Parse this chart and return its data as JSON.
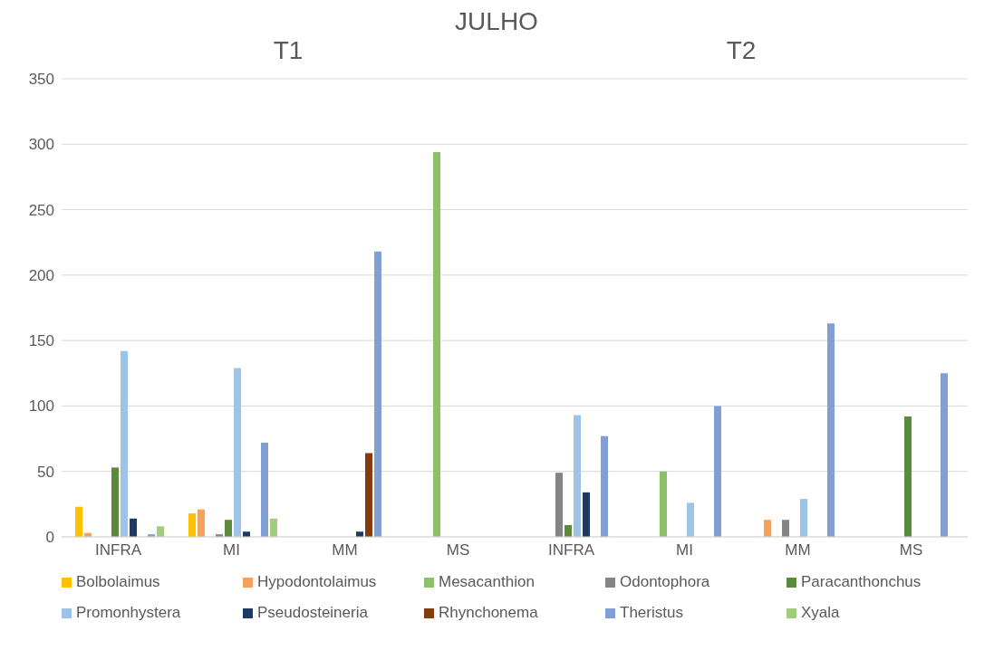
{
  "chart_data": {
    "type": "bar",
    "title": "JULHO",
    "annotations": [
      "T1",
      "T2"
    ],
    "categories": [
      "INFRA",
      "MI",
      "MM",
      "MS",
      "INFRA",
      "MI",
      "MM",
      "MS"
    ],
    "series": [
      {
        "name": "Bolbolaimus",
        "color": "#ffc000",
        "values": [
          23,
          18,
          null,
          null,
          null,
          null,
          null,
          null
        ]
      },
      {
        "name": "Hypodontolaimus",
        "color": "#f4a15d",
        "values": [
          3,
          21,
          null,
          null,
          null,
          null,
          13,
          null
        ]
      },
      {
        "name": "Mesacanthion",
        "color": "#8dc06a",
        "values": [
          null,
          null,
          null,
          294,
          null,
          50,
          null,
          null
        ]
      },
      {
        "name": "Odontophora",
        "color": "#858585",
        "values": [
          null,
          2,
          null,
          null,
          49,
          null,
          13,
          null
        ]
      },
      {
        "name": "Paracanthonchus",
        "color": "#5b8a3c",
        "values": [
          53,
          13,
          null,
          null,
          9,
          null,
          null,
          92
        ]
      },
      {
        "name": "Promonhystera",
        "color": "#9dc3e6",
        "values": [
          142,
          129,
          null,
          null,
          93,
          26,
          29,
          null
        ]
      },
      {
        "name": "Pseudosteineria",
        "color": "#203864",
        "values": [
          14,
          4,
          4,
          null,
          34,
          null,
          null,
          null
        ]
      },
      {
        "name": "Rhynchonema",
        "color": "#843c0c",
        "values": [
          null,
          null,
          64,
          null,
          null,
          null,
          null,
          null
        ]
      },
      {
        "name": "Theristus",
        "color": "#7f9fd5",
        "values": [
          2,
          72,
          218,
          null,
          77,
          100,
          163,
          125
        ]
      },
      {
        "name": "Xyala",
        "color": "#9fcc7f",
        "values": [
          8,
          14,
          null,
          null,
          null,
          null,
          null,
          null
        ]
      }
    ],
    "ylim": [
      0,
      350
    ],
    "yticks": [
      0,
      50,
      100,
      150,
      200,
      250,
      300,
      350
    ],
    "grid": "y",
    "legend": "bottom"
  }
}
